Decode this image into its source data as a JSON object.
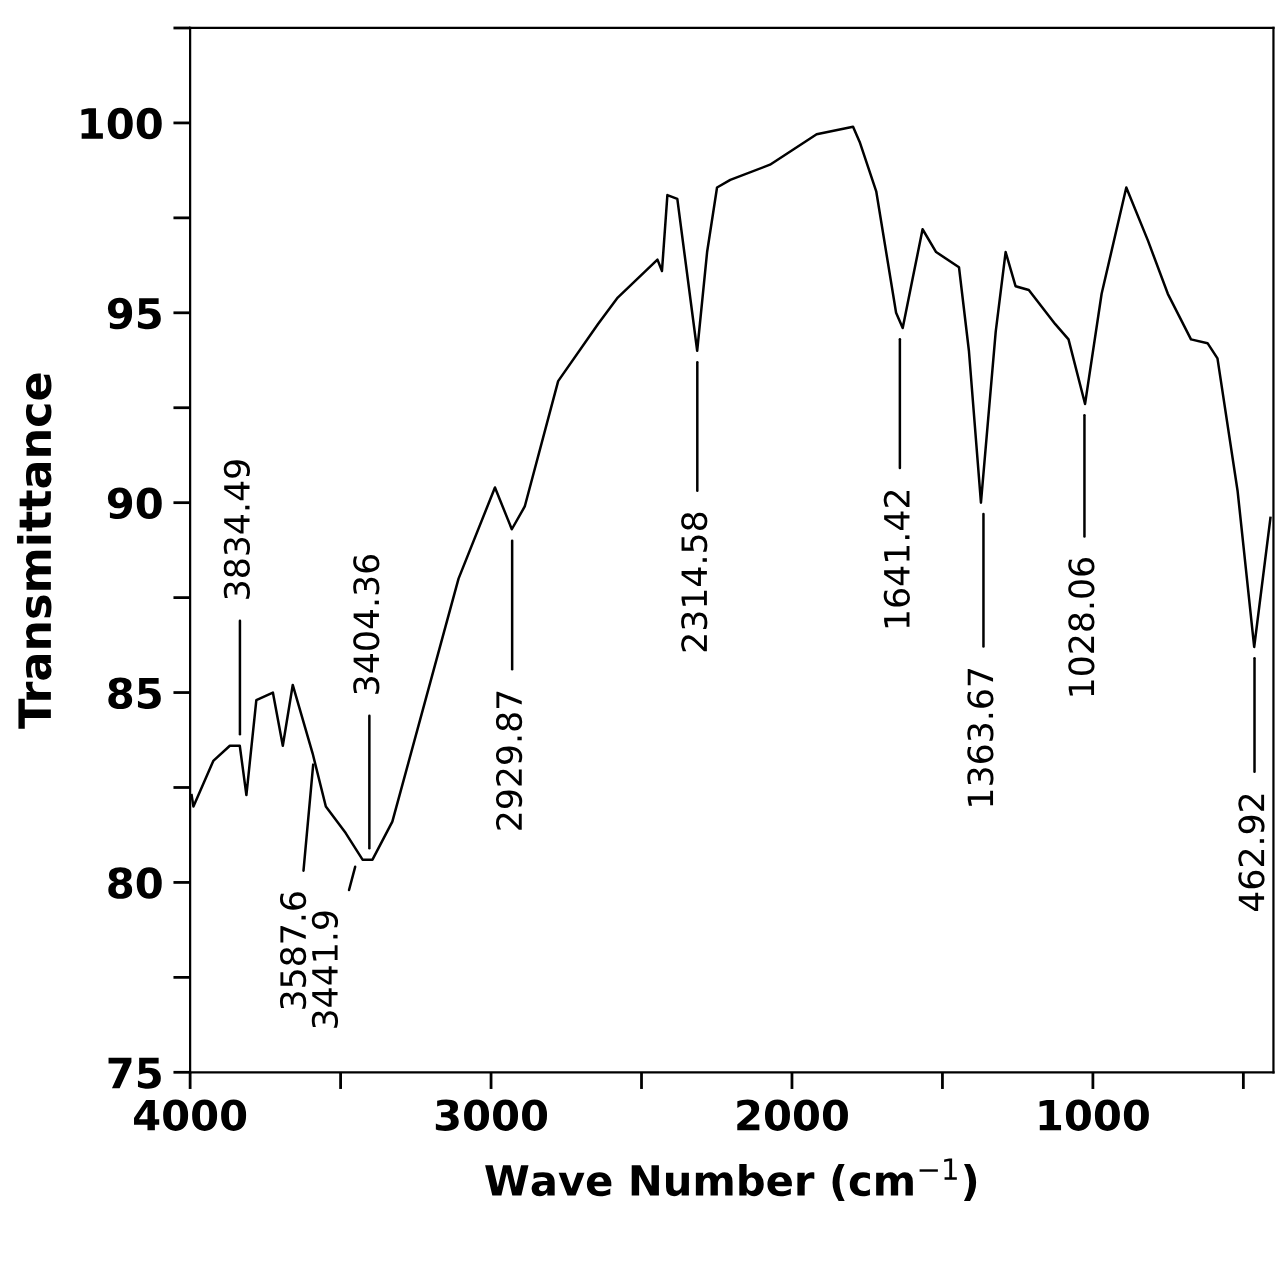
{
  "chart_data": {
    "type": "line",
    "xlabel": "Wave Number (cm$^{−1}$)",
    "ylabel": "Transmittance",
    "x": [
      3995,
      3989,
      3923,
      3868,
      3835,
      3813,
      3780,
      3725,
      3692,
      3659,
      3593,
      3549,
      3483,
      3427,
      3394,
      3328,
      3218,
      3108,
      2987,
      2931,
      2888,
      2777,
      2645,
      2579,
      2447,
      2432,
      2414,
      2381,
      2315,
      2282,
      2249,
      2205,
      2073,
      1918,
      1797,
      1775,
      1720,
      1654,
      1632,
      1599,
      1566,
      1521,
      1445,
      1412,
      1372,
      1323,
      1290,
      1257,
      1213,
      1125,
      1081,
      1026,
      971,
      889,
      817,
      751,
      674,
      619,
      586,
      519,
      464,
      410
    ],
    "series": [
      {
        "color": "#000000",
        "values": [
          82.3,
          82.0,
          83.2,
          83.6,
          83.6,
          82.3,
          84.8,
          85.0,
          83.6,
          85.2,
          83.4,
          82.0,
          81.3,
          80.6,
          80.6,
          81.6,
          84.8,
          88.0,
          90.4,
          89.3,
          89.9,
          93.2,
          94.7,
          95.4,
          96.4,
          96.1,
          98.1,
          98.0,
          94.0,
          96.6,
          98.3,
          98.5,
          98.9,
          99.7,
          99.9,
          99.5,
          98.2,
          95.0,
          94.6,
          95.9,
          97.2,
          96.6,
          96.2,
          94.0,
          90.0,
          94.5,
          96.6,
          95.7,
          95.6,
          94.7,
          94.3,
          92.6,
          95.5,
          98.3,
          96.9,
          95.5,
          94.3,
          94.2,
          93.8,
          90.3,
          86.2,
          89.6
        ]
      }
    ],
    "xlim": [
      4000,
      400
    ],
    "ylim": [
      75,
      102.5
    ],
    "xticks": [
      4000,
      {
        "value": 3500,
        "label": null
      },
      3000,
      {
        "value": 2500,
        "label": null
      },
      2000,
      {
        "value": 1500,
        "label": null
      },
      1000,
      {
        "value": 500,
        "label": null
      }
    ],
    "yticks": [
      75,
      {
        "value": 77.5,
        "label": null
      },
      80,
      {
        "value": 82.5,
        "label": null
      },
      85,
      {
        "value": 87.5,
        "label": null
      },
      90,
      {
        "value": 92.5,
        "label": null
      },
      95,
      {
        "value": 97.5,
        "label": null
      },
      100,
      {
        "value": 102.5,
        "label": null
      }
    ],
    "grid": false,
    "legend": false,
    "marker": "none",
    "line_style": "solid",
    "annotations": [
      {
        "text": "3834.49",
        "x": 3834.49,
        "y": 83.6
      },
      {
        "text": "3587.6",
        "x": 3587.6,
        "y": 83.4
      },
      {
        "text": "3441.9",
        "x": 3441.9,
        "y": 80.7
      },
      {
        "text": "3404.36",
        "x": 3404.36,
        "y": 80.6
      },
      {
        "text": "2929.87",
        "x": 2929.87,
        "y": 89.3
      },
      {
        "text": "2314.58",
        "x": 2314.58,
        "y": 94.0
      },
      {
        "text": "1641.42",
        "x": 1641.42,
        "y": 94.6
      },
      {
        "text": "1363.67",
        "x": 1363.67,
        "y": 90.0
      },
      {
        "text": "1028.06",
        "x": 1028.06,
        "y": 92.6
      },
      {
        "text": "462.92",
        "x": 462.92,
        "y": 86.2
      }
    ]
  }
}
